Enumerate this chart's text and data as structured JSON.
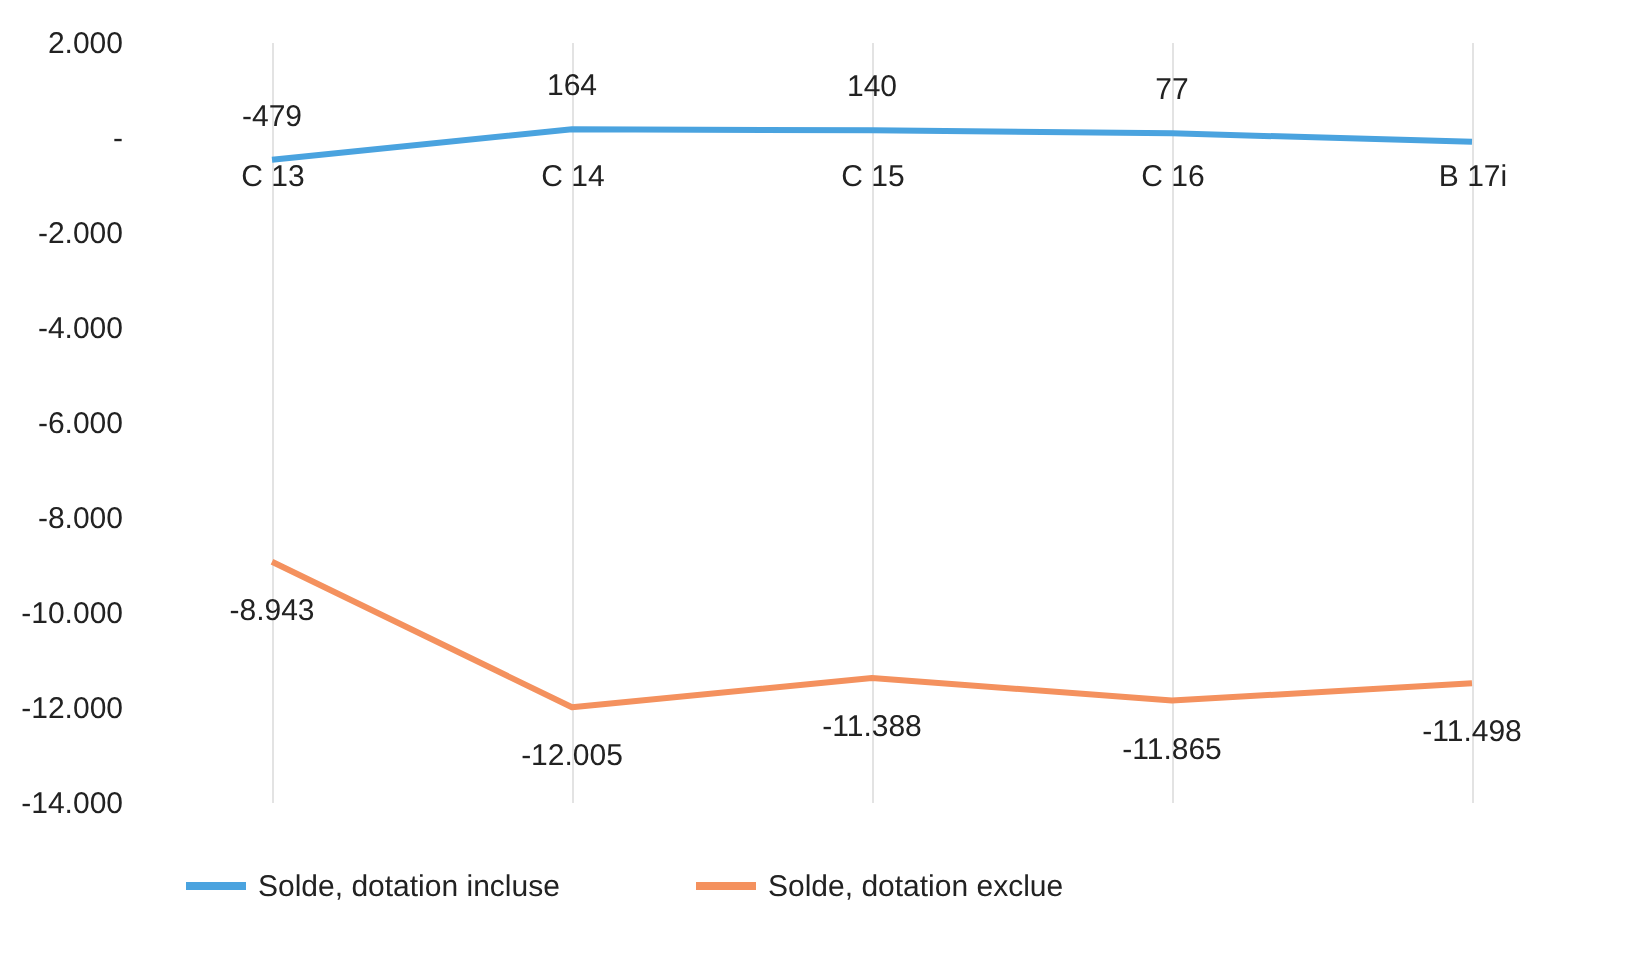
{
  "chart_data": {
    "type": "line",
    "categories": [
      "C 13",
      "C 14",
      "C 15",
      "C 16",
      "B 17i"
    ],
    "series": [
      {
        "name": "Solde, dotation incluse",
        "color": "#4aa3df",
        "values": [
          -479,
          164,
          140,
          77,
          -100
        ],
        "value_labels": [
          "-479",
          "164",
          "140",
          "77",
          null
        ]
      },
      {
        "name": "Solde, dotation exclue",
        "color": "#f4915e",
        "values": [
          -8943,
          -12005,
          -11388,
          -11865,
          -11498
        ],
        "value_labels": [
          "-8.943",
          "-12.005",
          "-11.388",
          "-11.865",
          "-11.498"
        ]
      }
    ],
    "ylim": [
      -14000,
      2000
    ],
    "yticks": [
      {
        "value": -14000,
        "label": "-14.000"
      },
      {
        "value": -12000,
        "label": "-12.000"
      },
      {
        "value": -10000,
        "label": "-10.000"
      },
      {
        "value": -8000,
        "label": "-8.000"
      },
      {
        "value": -6000,
        "label": "-6.000"
      },
      {
        "value": -4000,
        "label": "-4.000"
      },
      {
        "value": -2000,
        "label": "-2.000"
      },
      {
        "value": 0,
        "label": "-"
      },
      {
        "value": 2000,
        "label": "2.000"
      }
    ],
    "grid": "x",
    "legend": "bottom",
    "marker": "none",
    "line_style": "solid"
  }
}
